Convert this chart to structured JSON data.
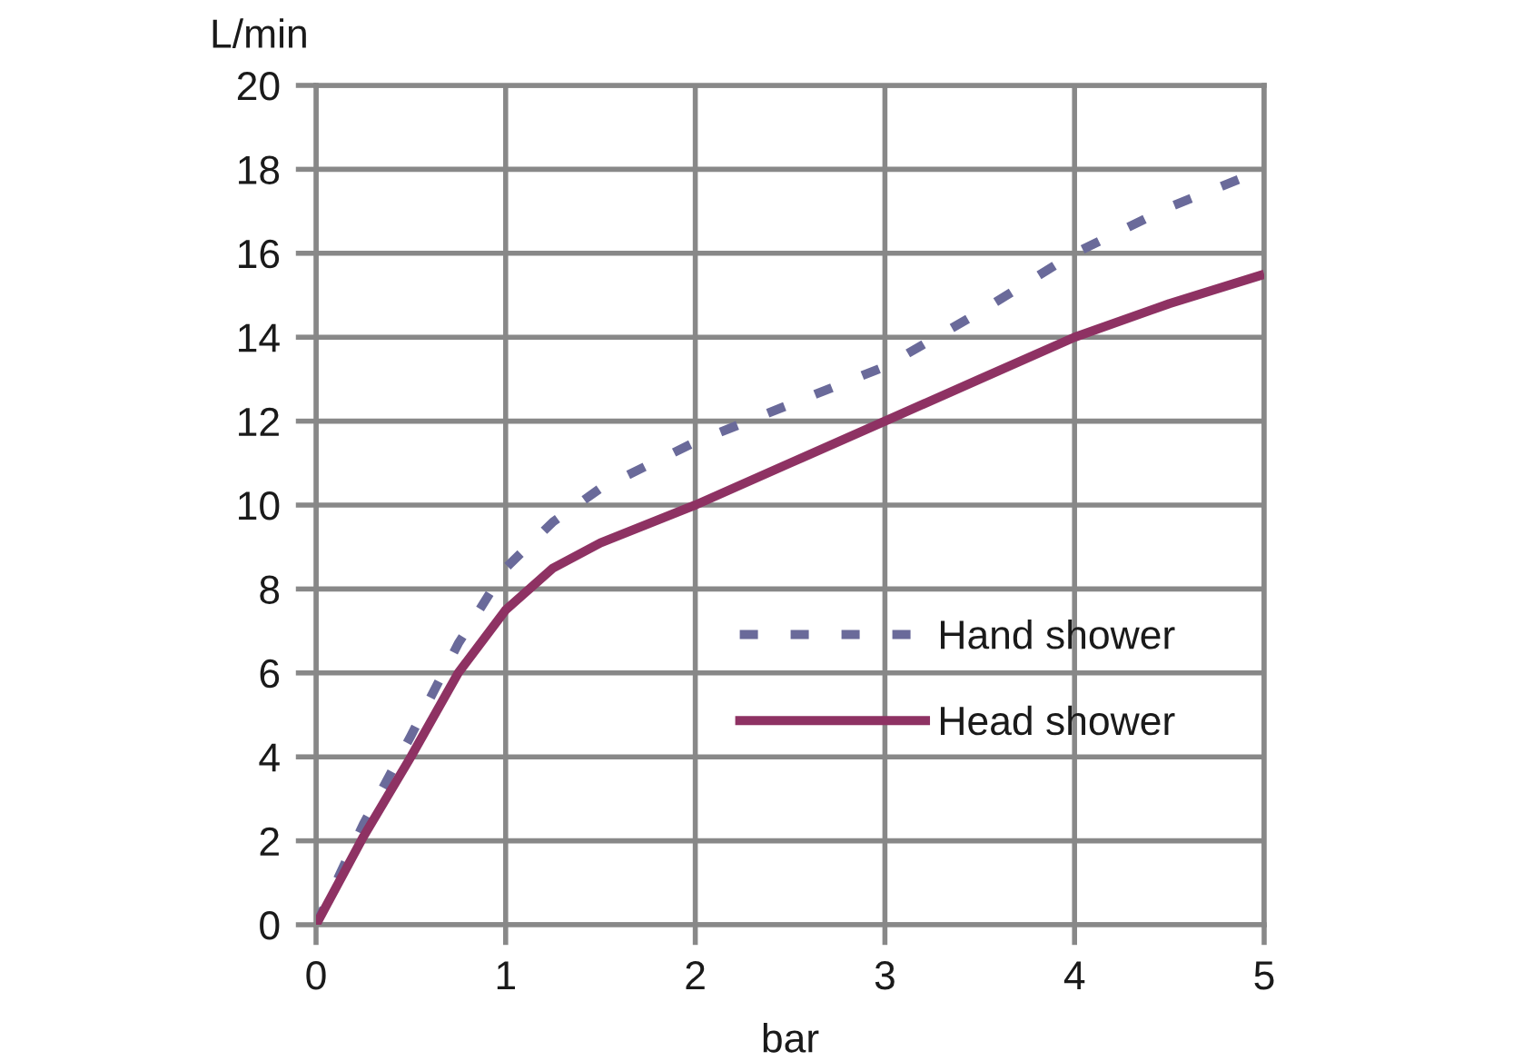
{
  "chart_data": {
    "type": "line",
    "xlabel": "bar",
    "ylabel": "L/min",
    "x": [
      0,
      0.25,
      0.5,
      0.75,
      1,
      1.25,
      1.5,
      2,
      2.5,
      3,
      3.5,
      4,
      4.5,
      5
    ],
    "series": [
      {
        "name": "Hand shower",
        "color": "#6a6a9a",
        "line_style": "dashed",
        "values": [
          0,
          2.4,
          4.5,
          6.7,
          8.5,
          9.6,
          10.4,
          11.5,
          12.4,
          13.3,
          14.6,
          16.0,
          17.1,
          18.0
        ]
      },
      {
        "name": "Head shower",
        "color": "#8e3263",
        "line_style": "solid",
        "values": [
          0,
          2.1,
          4.0,
          6.0,
          7.5,
          8.5,
          9.1,
          10.0,
          11.0,
          12.0,
          13.0,
          14.0,
          14.8,
          15.5
        ]
      }
    ],
    "xlim": [
      0,
      5
    ],
    "ylim": [
      0,
      20
    ],
    "xticks": [
      0,
      1,
      2,
      3,
      4,
      5
    ],
    "yticks": [
      0,
      2,
      4,
      6,
      8,
      10,
      12,
      14,
      16,
      18,
      20
    ],
    "grid": true,
    "legend": "right"
  }
}
